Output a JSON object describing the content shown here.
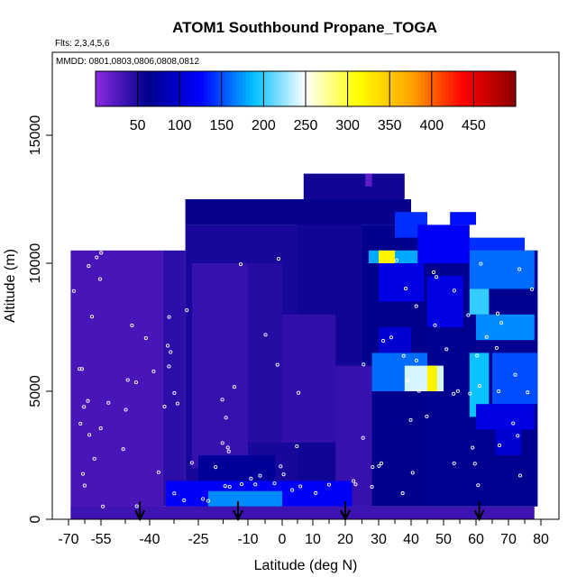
{
  "chart_data": {
    "type": "heatmap",
    "title": "ATOM1 Southbound Propane_TOGA",
    "flights_label": "Flts: 2,3,4,5,6",
    "dates_label": "MMDD: 0801,0803,0806,0808,0812",
    "xlabel": "Latitude (deg N)",
    "ylabel": "Altitude (m)",
    "xlim": [
      -70,
      82
    ],
    "ylim": [
      0,
      17500
    ],
    "x_ticks": [
      -70,
      -55,
      -40,
      -25,
      -10,
      0,
      10,
      20,
      30,
      40,
      50,
      60,
      70,
      80
    ],
    "x_tick_labels": [
      "-70",
      "-55",
      "-40",
      "-25",
      "-10",
      "0",
      "10",
      "20",
      "30",
      "40",
      "50",
      "60",
      "70",
      "80"
    ],
    "y_ticks": [
      0,
      5000,
      10000,
      15000
    ],
    "y_tick_labels": [
      "0",
      "5000",
      "10000",
      "15000"
    ],
    "colorbar": {
      "range": [
        0,
        500
      ],
      "ticks": [
        50,
        100,
        150,
        200,
        250,
        300,
        350,
        400,
        450
      ],
      "tick_labels": [
        "50",
        "100",
        "150",
        "200",
        "250",
        "300",
        "350",
        "400",
        "450"
      ],
      "colors": [
        "#8a2be2",
        "#00008b",
        "#0000ff",
        "#00bfff",
        "#ffffff",
        "#ffff00",
        "#ffa500",
        "#ff0000",
        "#8b0000"
      ]
    },
    "profile_markers_lat": [
      -43,
      -13,
      20,
      61
    ],
    "cells": [
      {
        "x0": -69,
        "x1": -36,
        "y0": 0,
        "y1": 10500,
        "value": 30
      },
      {
        "x0": -36,
        "x1": -29,
        "y0": 500,
        "y1": 10500,
        "value": 42
      },
      {
        "x0": -29,
        "x1": 5,
        "y0": 500,
        "y1": 11500,
        "value": 52
      },
      {
        "x0": 5,
        "x1": 25,
        "y0": 500,
        "y1": 12500,
        "value": 55
      },
      {
        "x0": 25,
        "x1": 45,
        "y0": 500,
        "y1": 11500,
        "value": 62
      },
      {
        "x0": 45,
        "x1": 79,
        "y0": 500,
        "y1": 10500,
        "value": 65
      },
      {
        "x0": -29,
        "x1": 40,
        "y0": 11500,
        "y1": 12500,
        "value": 60
      },
      {
        "x0": 7,
        "x1": 38,
        "y0": 12500,
        "y1": 13500,
        "value": 55
      },
      {
        "x0": -27,
        "x1": -10,
        "y0": 2000,
        "y1": 10000,
        "value": 38
      },
      {
        "x0": -10,
        "x1": 0,
        "y0": 3000,
        "y1": 10000,
        "value": 45
      },
      {
        "x0": 0,
        "x1": 17,
        "y0": 3000,
        "y1": 8000,
        "value": 40
      },
      {
        "x0": 17,
        "x1": 28,
        "y0": 500,
        "y1": 6000,
        "value": 38
      },
      {
        "x0": -25,
        "x1": -2,
        "y0": 500,
        "y1": 2500,
        "value": 70
      },
      {
        "x0": -35,
        "x1": 22,
        "y0": 500,
        "y1": 1500,
        "value": 120
      },
      {
        "x0": -22,
        "x1": 0,
        "y0": 500,
        "y1": 1100,
        "value": 170
      },
      {
        "x0": -69,
        "x1": 78,
        "y0": 0,
        "y1": 500,
        "value": 35
      },
      {
        "x0": 28,
        "x1": 45,
        "y0": 5000,
        "y1": 6500,
        "value": 160
      },
      {
        "x0": 38,
        "x1": 50,
        "y0": 5000,
        "y1": 6000,
        "value": 240
      },
      {
        "x0": 45,
        "x1": 48,
        "y0": 5000,
        "y1": 6000,
        "value": 320
      },
      {
        "x0": 58,
        "x1": 64,
        "y0": 4000,
        "y1": 6500,
        "value": 190
      },
      {
        "x0": 65,
        "x1": 79,
        "y0": 4500,
        "y1": 6500,
        "value": 150
      },
      {
        "x0": 60,
        "x1": 78,
        "y0": 7000,
        "y1": 8000,
        "value": 170
      },
      {
        "x0": 58,
        "x1": 78,
        "y0": 9000,
        "y1": 10500,
        "value": 160
      },
      {
        "x0": 58,
        "x1": 64,
        "y0": 8000,
        "y1": 9000,
        "value": 200
      },
      {
        "x0": 55,
        "x1": 75,
        "y0": 10500,
        "y1": 11000,
        "value": 140
      },
      {
        "x0": 27,
        "x1": 45,
        "y0": 10000,
        "y1": 10500,
        "value": 180
      },
      {
        "x0": 30,
        "x1": 35,
        "y0": 10000,
        "y1": 10500,
        "value": 320
      },
      {
        "x0": 35,
        "x1": 45,
        "y0": 11000,
        "y1": 12000,
        "value": 140
      },
      {
        "x0": 42,
        "x1": 58,
        "y0": 10000,
        "y1": 11500,
        "value": 120
      },
      {
        "x0": 26,
        "x1": 28,
        "y0": 13000,
        "y1": 13500,
        "value": 20
      },
      {
        "x0": 30,
        "x1": 44,
        "y0": 8500,
        "y1": 10000,
        "value": 110
      },
      {
        "x0": 45,
        "x1": 56,
        "y0": 7500,
        "y1": 9500,
        "value": 110
      },
      {
        "x0": 60,
        "x1": 78,
        "y0": 3500,
        "y1": 4500,
        "value": 110
      },
      {
        "x0": 66,
        "x1": 74,
        "y0": 2500,
        "y1": 3500,
        "value": 100
      },
      {
        "x0": 30,
        "x1": 40,
        "y0": 6500,
        "y1": 7500,
        "value": 100
      },
      {
        "x0": 52,
        "x1": 60,
        "y0": 11500,
        "y1": 12000,
        "value": 130
      }
    ]
  }
}
